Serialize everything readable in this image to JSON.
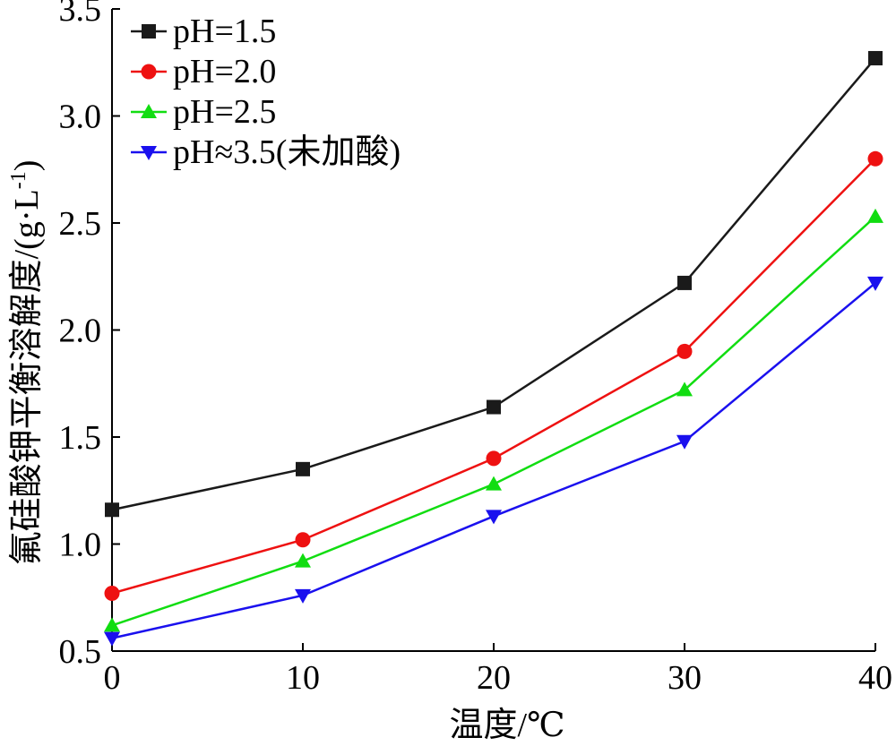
{
  "chart_data": {
    "type": "line",
    "xlabel": "温度/℃",
    "ylabel": "氟硅酸钾平衡溶解度/(g·L",
    "ylabel_sup": "-1",
    "ylabel_close": ")",
    "x": [
      0,
      10,
      20,
      30,
      40
    ],
    "xlim": [
      0,
      40
    ],
    "ylim": [
      0.5,
      3.5
    ],
    "xticks": [
      "0",
      "10",
      "20",
      "30",
      "40"
    ],
    "yticks": [
      "0.5",
      "1.0",
      "1.5",
      "2.0",
      "2.5",
      "3.0",
      "3.5"
    ],
    "legend_position": "top-left",
    "series": [
      {
        "name": "pH=1.5",
        "marker": "square",
        "color": "#1a1a1a",
        "values": [
          1.16,
          1.35,
          1.64,
          2.22,
          3.27
        ]
      },
      {
        "name": "pH=2.0",
        "marker": "circle",
        "color": "#ee1111",
        "values": [
          0.77,
          1.02,
          1.4,
          1.9,
          2.8
        ]
      },
      {
        "name": "pH=2.5",
        "marker": "triangle-up",
        "color": "#11dd11",
        "values": [
          0.62,
          0.92,
          1.28,
          1.72,
          2.53
        ]
      },
      {
        "name": "pH≈3.5(未加酸)",
        "marker": "triangle-down",
        "color": "#1a10ee",
        "values": [
          0.56,
          0.76,
          1.13,
          1.48,
          2.22
        ]
      }
    ]
  }
}
